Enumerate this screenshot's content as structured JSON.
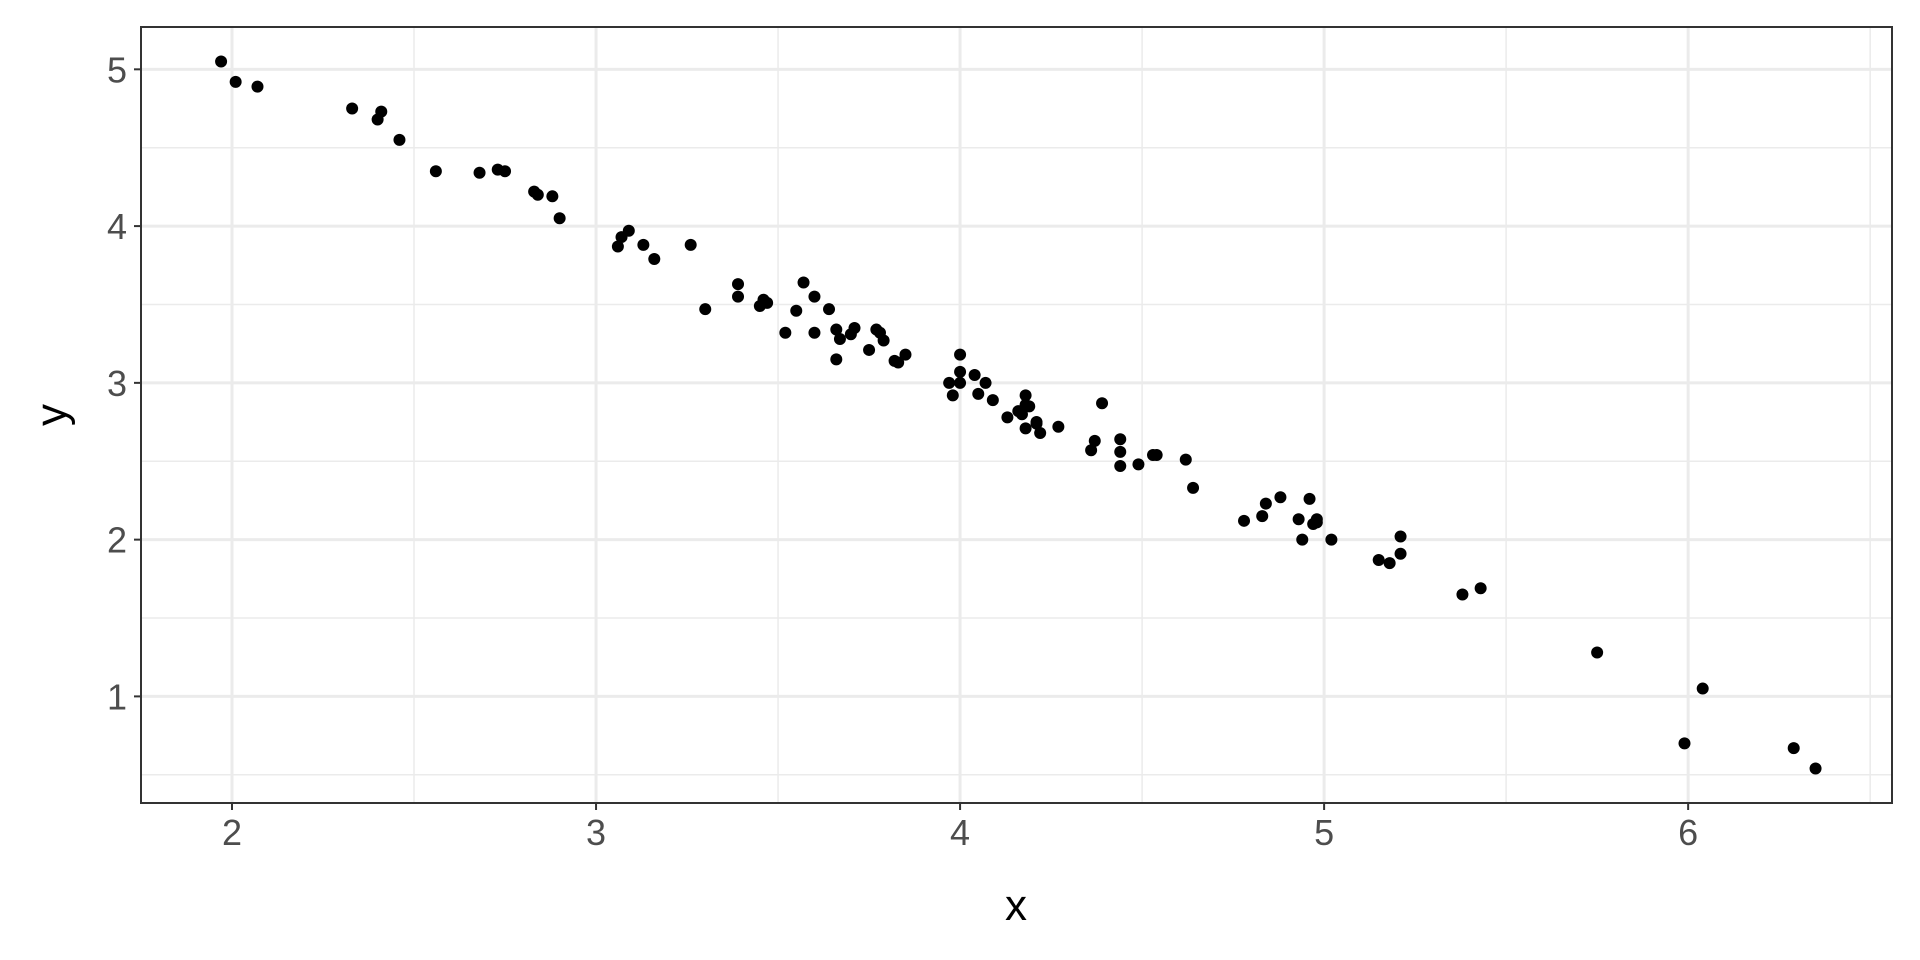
{
  "chart_data": {
    "type": "scatter",
    "title": "",
    "xlabel": "x",
    "ylabel": "y",
    "xlim": [
      1.75,
      6.56
    ],
    "ylim": [
      0.32,
      5.27
    ],
    "x_ticks": [
      2,
      3,
      4,
      5,
      6
    ],
    "y_ticks": [
      1,
      2,
      3,
      4,
      5
    ],
    "x_tick_labels": [
      "2",
      "3",
      "4",
      "5",
      "6"
    ],
    "y_tick_labels": [
      "1",
      "2",
      "3",
      "4",
      "5"
    ],
    "grid": true,
    "theme": "bw",
    "point_color": "#000000",
    "points": [
      [
        1.97,
        5.05
      ],
      [
        2.01,
        4.92
      ],
      [
        2.07,
        4.89
      ],
      [
        2.33,
        4.75
      ],
      [
        2.4,
        4.68
      ],
      [
        2.41,
        4.73
      ],
      [
        2.46,
        4.55
      ],
      [
        2.56,
        4.35
      ],
      [
        2.68,
        4.34
      ],
      [
        2.73,
        4.36
      ],
      [
        2.75,
        4.35
      ],
      [
        2.83,
        4.22
      ],
      [
        2.84,
        4.2
      ],
      [
        2.88,
        4.19
      ],
      [
        2.9,
        4.05
      ],
      [
        3.06,
        3.87
      ],
      [
        3.07,
        3.93
      ],
      [
        3.09,
        3.97
      ],
      [
        3.13,
        3.88
      ],
      [
        3.16,
        3.79
      ],
      [
        3.26,
        3.88
      ],
      [
        3.3,
        3.47
      ],
      [
        3.39,
        3.63
      ],
      [
        3.39,
        3.55
      ],
      [
        3.45,
        3.49
      ],
      [
        3.46,
        3.53
      ],
      [
        3.47,
        3.51
      ],
      [
        3.52,
        3.32
      ],
      [
        3.55,
        3.46
      ],
      [
        3.57,
        3.64
      ],
      [
        3.6,
        3.55
      ],
      [
        3.6,
        3.32
      ],
      [
        3.64,
        3.47
      ],
      [
        3.66,
        3.34
      ],
      [
        3.67,
        3.28
      ],
      [
        3.66,
        3.15
      ],
      [
        3.7,
        3.31
      ],
      [
        3.71,
        3.35
      ],
      [
        3.75,
        3.21
      ],
      [
        3.77,
        3.34
      ],
      [
        3.78,
        3.32
      ],
      [
        3.79,
        3.27
      ],
      [
        3.82,
        3.14
      ],
      [
        3.83,
        3.13
      ],
      [
        3.85,
        3.18
      ],
      [
        3.97,
        3.0
      ],
      [
        3.98,
        2.92
      ],
      [
        4.0,
        3.07
      ],
      [
        4.0,
        3.18
      ],
      [
        4.0,
        3.0
      ],
      [
        4.04,
        3.05
      ],
      [
        4.05,
        2.93
      ],
      [
        4.07,
        3.0
      ],
      [
        4.09,
        2.89
      ],
      [
        4.13,
        2.78
      ],
      [
        4.16,
        2.82
      ],
      [
        4.17,
        2.8
      ],
      [
        4.18,
        2.92
      ],
      [
        4.18,
        2.86
      ],
      [
        4.19,
        2.85
      ],
      [
        4.18,
        2.71
      ],
      [
        4.21,
        2.75
      ],
      [
        4.21,
        2.74
      ],
      [
        4.22,
        2.68
      ],
      [
        4.27,
        2.72
      ],
      [
        4.36,
        2.57
      ],
      [
        4.37,
        2.63
      ],
      [
        4.39,
        2.87
      ],
      [
        4.44,
        2.64
      ],
      [
        4.44,
        2.56
      ],
      [
        4.44,
        2.47
      ],
      [
        4.49,
        2.48
      ],
      [
        4.53,
        2.54
      ],
      [
        4.54,
        2.54
      ],
      [
        4.62,
        2.51
      ],
      [
        4.64,
        2.33
      ],
      [
        4.78,
        2.12
      ],
      [
        4.83,
        2.15
      ],
      [
        4.84,
        2.23
      ],
      [
        4.88,
        2.27
      ],
      [
        4.93,
        2.13
      ],
      [
        4.94,
        2.0
      ],
      [
        4.96,
        2.26
      ],
      [
        4.97,
        2.1
      ],
      [
        4.98,
        2.11
      ],
      [
        4.98,
        2.13
      ],
      [
        5.02,
        2.0
      ],
      [
        5.15,
        1.87
      ],
      [
        5.18,
        1.85
      ],
      [
        5.21,
        1.91
      ],
      [
        5.21,
        2.02
      ],
      [
        5.38,
        1.65
      ],
      [
        5.43,
        1.69
      ],
      [
        5.75,
        1.28
      ],
      [
        5.99,
        0.7
      ],
      [
        6.04,
        1.05
      ],
      [
        6.29,
        0.67
      ],
      [
        6.35,
        0.54
      ]
    ]
  }
}
